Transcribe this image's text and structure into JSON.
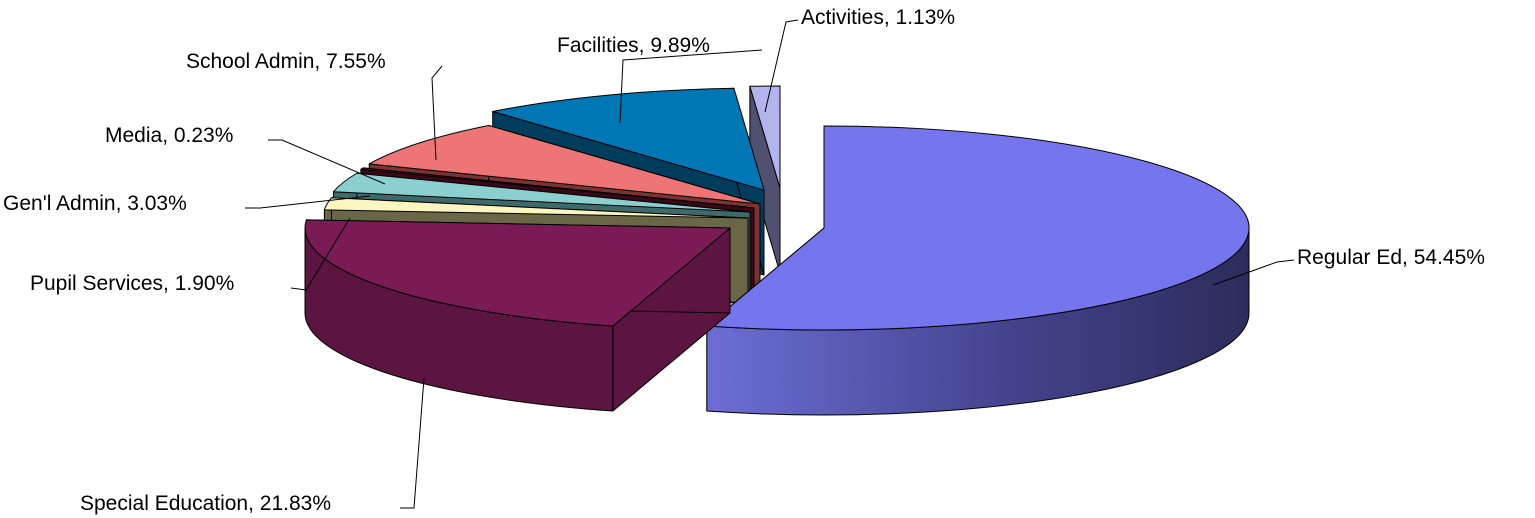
{
  "chart_data": {
    "type": "pie",
    "style": "3d-exploded",
    "legend": "none",
    "slices": [
      {
        "label": "Regular Ed, 54.45%",
        "name": "Regular Ed",
        "value": 54.45,
        "color": "#7575ee",
        "side": "#353570"
      },
      {
        "label": "Special Education, 21.83%",
        "name": "Special Education",
        "value": 21.83,
        "color": "#7a1b55",
        "side": "#5c1440"
      },
      {
        "label": "Pupil Services, 1.90%",
        "name": "Pupil Services",
        "value": 1.9,
        "color": "#fbf6c0",
        "side": "#6a6748"
      },
      {
        "label": "Gen'l Admin, 3.03%",
        "name": "Gen'l Admin",
        "value": 3.03,
        "color": "#8ccfd0",
        "side": "#3f6a6b"
      },
      {
        "label": "Media, 0.23%",
        "name": "Media",
        "value": 0.23,
        "color": "#6b1030",
        "side": "#3a0818"
      },
      {
        "label": "School Admin, 7.55%",
        "name": "School Admin",
        "value": 7.55,
        "color": "#ee7575",
        "side": "#7a3232"
      },
      {
        "label": "Facilities, 9.89%",
        "name": "Facilities",
        "value": 9.89,
        "color": "#0077b5",
        "side": "#003c5c"
      },
      {
        "label": "Activities, 1.13%",
        "name": "Activities",
        "value": 1.13,
        "color": "#b3b3ee",
        "side": "#505070"
      }
    ]
  }
}
